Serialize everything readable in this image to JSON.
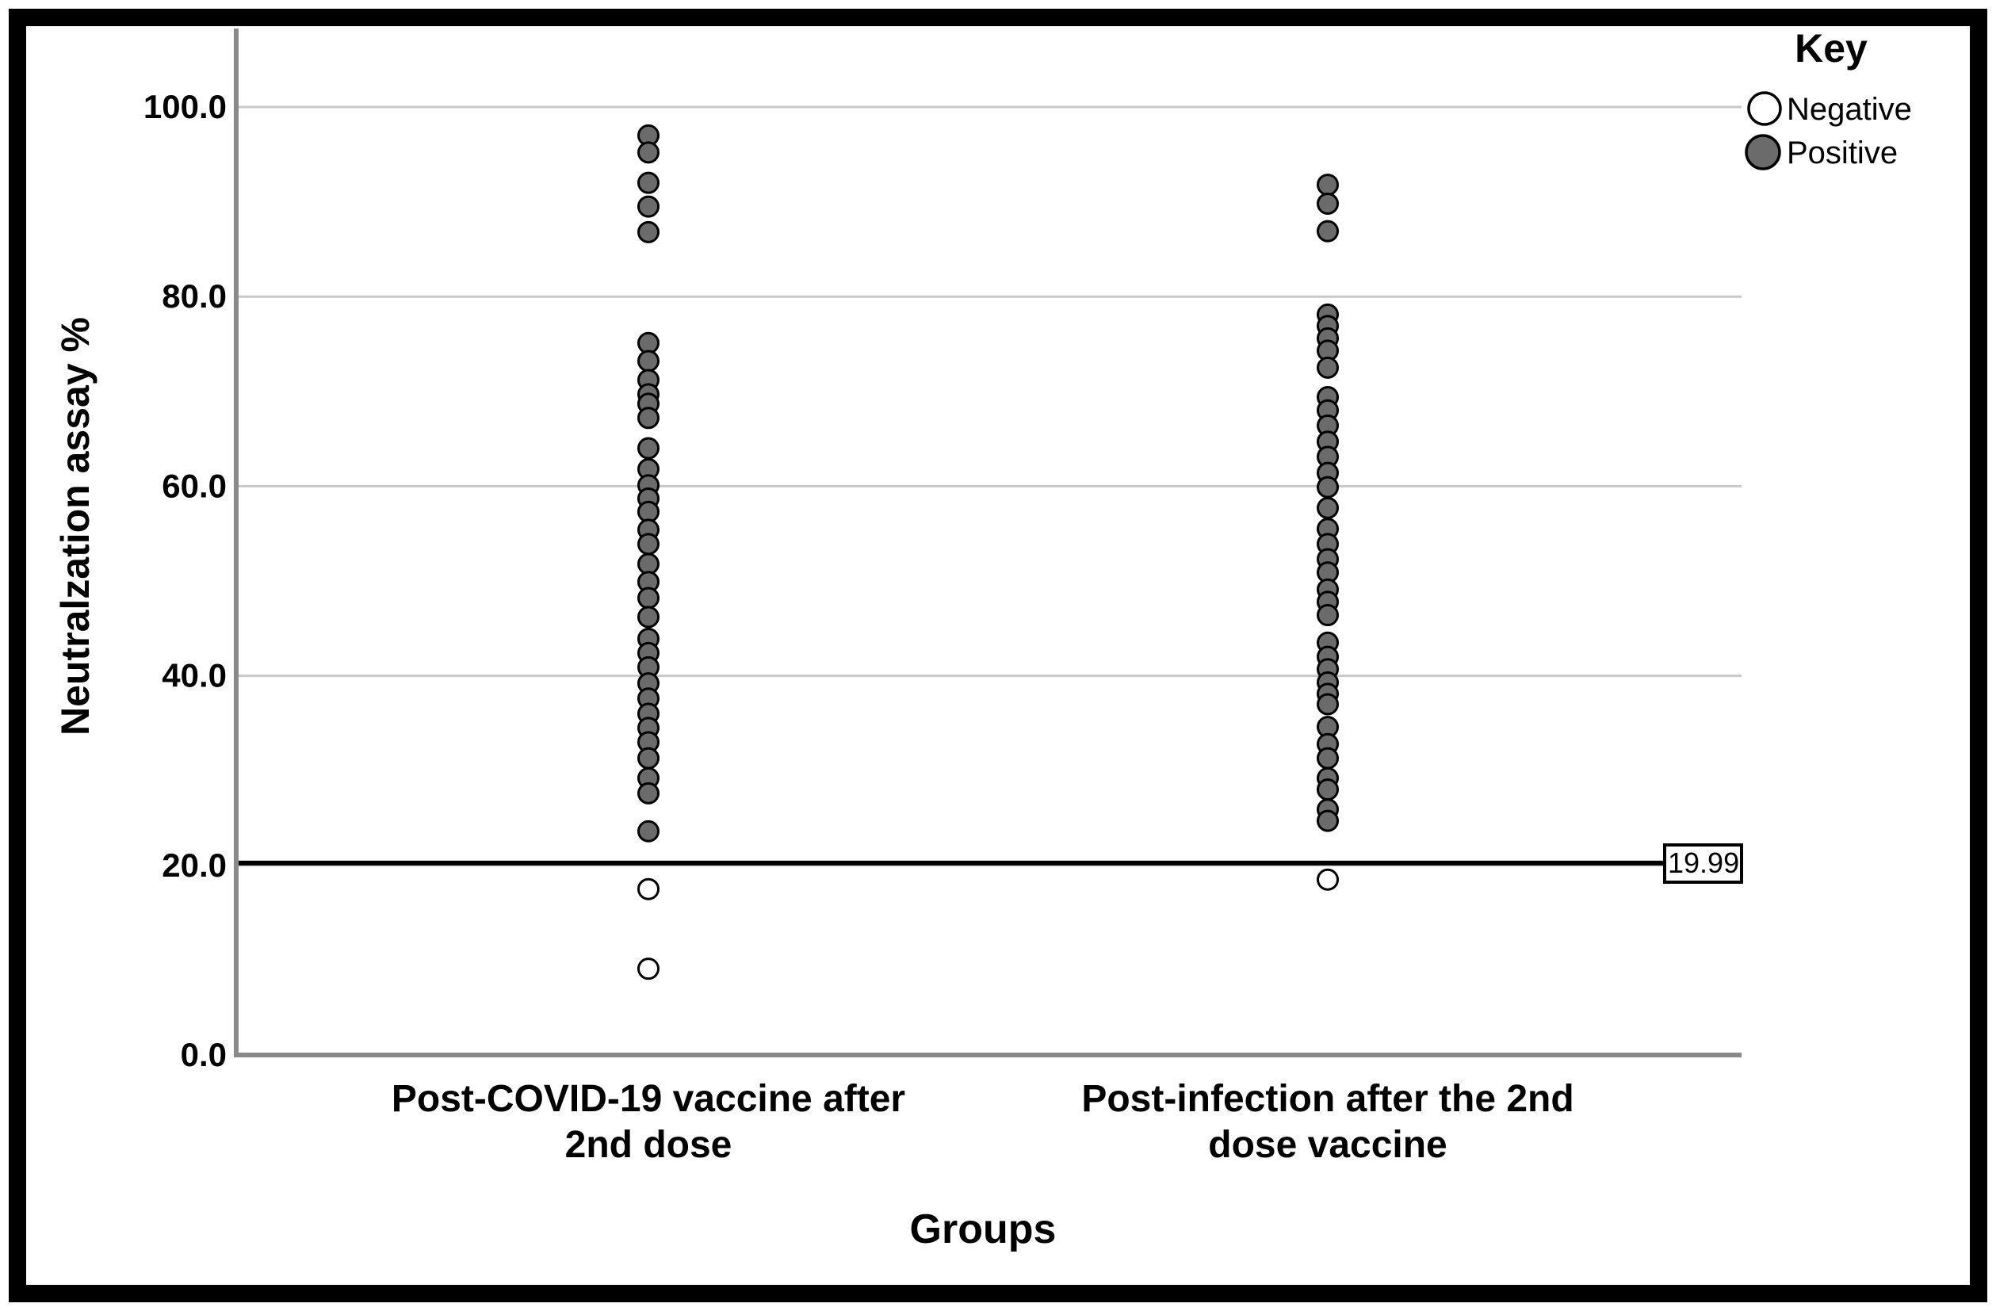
{
  "chart_data": {
    "type": "scatter",
    "title": "",
    "xlabel": "Groups",
    "ylabel": "Neutralzation assay %",
    "ylim": [
      0,
      109
    ],
    "grid": "horizontal",
    "yticks": [
      {
        "value": 0,
        "label": "0.0"
      },
      {
        "value": 20,
        "label": "20.0"
      },
      {
        "value": 40,
        "label": "40.0"
      },
      {
        "value": 60,
        "label": "60.0"
      },
      {
        "value": 80,
        "label": "80.0"
      },
      {
        "value": 100,
        "label": "100.0"
      }
    ],
    "categories": [
      "Post-COVID-19 vaccine after 2nd dose",
      "Post-infection after the 2nd dose vaccine"
    ],
    "category_lines": [
      [
        "Post-COVID-19 vaccine after",
        "2nd dose"
      ],
      [
        "Post-infection after the 2nd",
        "dose vaccine"
      ]
    ],
    "reference_line": {
      "value": 19.99,
      "label": "19.99"
    },
    "legend": {
      "title": "Key",
      "position": "top-right",
      "entries": [
        {
          "label": "Negative",
          "fill": "#ffffff"
        },
        {
          "label": "Positive",
          "fill": "#6b6b6b"
        }
      ]
    },
    "series": [
      {
        "name": "Positive",
        "marker": "filled-circle",
        "fill": "#6b6b6b",
        "groups": [
          [
            97.0,
            95.2,
            92.0,
            89.5,
            86.8,
            75.1,
            73.2,
            71.2,
            69.7,
            68.7,
            67.2,
            64.0,
            61.8,
            60.1,
            58.7,
            57.3,
            55.4,
            53.9,
            51.8,
            49.9,
            48.2,
            46.2,
            43.9,
            42.4,
            40.9,
            39.2,
            37.6,
            36.0,
            34.5,
            33.0,
            31.3,
            29.2,
            27.6,
            23.6
          ],
          [
            91.8,
            89.8,
            86.9,
            78.1,
            76.9,
            75.6,
            74.3,
            72.5,
            69.4,
            68.0,
            66.4,
            64.7,
            63.1,
            61.4,
            59.9,
            57.7,
            55.5,
            53.9,
            52.3,
            50.9,
            49.1,
            47.8,
            46.4,
            43.5,
            42.0,
            40.7,
            39.3,
            38.1,
            37.0,
            34.6,
            32.8,
            31.3,
            29.2,
            28.0,
            25.9,
            24.7
          ]
        ]
      },
      {
        "name": "Negative",
        "marker": "open-circle",
        "fill": "#ffffff",
        "groups": [
          [
            17.5,
            9.1
          ],
          [
            18.5
          ]
        ]
      }
    ],
    "colors": {
      "positive_fill": "#6b6b6b",
      "negative_fill": "#ffffff",
      "marker_stroke": "#000000",
      "gridline": "#c9c9c9",
      "axis_line": "#898989",
      "reference_line": "#000000",
      "frame": "#000000"
    }
  }
}
